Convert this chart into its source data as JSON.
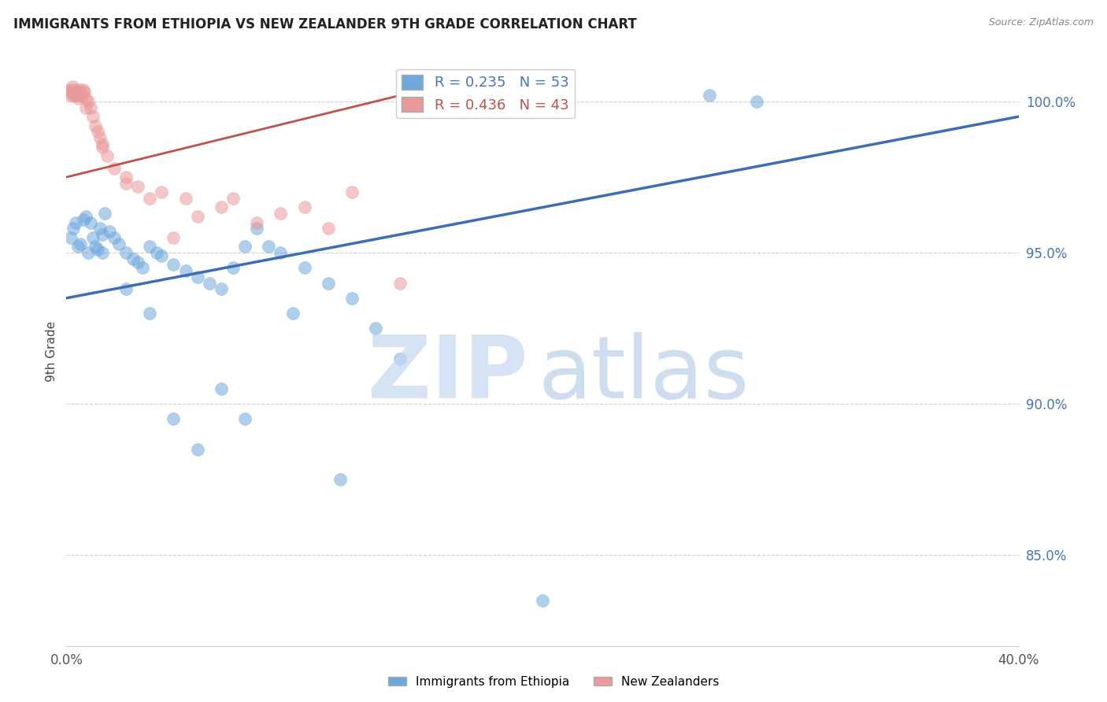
{
  "title": "IMMIGRANTS FROM ETHIOPIA VS NEW ZEALANDER 9TH GRADE CORRELATION CHART",
  "source": "Source: ZipAtlas.com",
  "ylabel": "9th Grade",
  "xlim": [
    0.0,
    40.0
  ],
  "ylim": [
    82.0,
    101.5
  ],
  "yticks": [
    85.0,
    90.0,
    95.0,
    100.0
  ],
  "ytick_labels": [
    "85.0%",
    "90.0%",
    "95.0%",
    "100.0%"
  ],
  "xticks": [
    0.0,
    5.0,
    10.0,
    15.0,
    20.0,
    25.0,
    30.0,
    35.0,
    40.0
  ],
  "xtick_labels": [
    "0.0%",
    "",
    "",
    "",
    "",
    "",
    "",
    "",
    "40.0%"
  ],
  "blue_color": "#6fa8dc",
  "pink_color": "#ea9999",
  "blue_line_color": "#3d6eb4",
  "pink_line_color": "#c0504d",
  "blue_scatter_x": [
    0.2,
    0.3,
    0.4,
    0.5,
    0.6,
    0.7,
    0.8,
    0.9,
    1.0,
    1.1,
    1.2,
    1.3,
    1.4,
    1.5,
    1.6,
    1.8,
    2.0,
    2.2,
    2.5,
    2.8,
    3.0,
    3.2,
    3.5,
    3.8,
    4.0,
    4.5,
    5.0,
    5.5,
    6.0,
    6.5,
    7.0,
    7.5,
    8.0,
    8.5,
    9.0,
    10.0,
    11.0,
    12.0,
    13.0,
    14.0,
    0.5,
    1.5,
    2.5,
    3.5,
    4.5,
    5.5,
    6.5,
    7.5,
    9.5,
    11.5,
    27.0,
    29.0,
    20.0
  ],
  "blue_scatter_y": [
    95.5,
    95.8,
    96.0,
    100.2,
    95.3,
    96.1,
    96.2,
    95.0,
    96.0,
    95.5,
    95.2,
    95.1,
    95.8,
    95.6,
    96.3,
    95.7,
    95.5,
    95.3,
    95.0,
    94.8,
    94.7,
    94.5,
    95.2,
    95.0,
    94.9,
    94.6,
    94.4,
    94.2,
    94.0,
    93.8,
    94.5,
    95.2,
    95.8,
    95.2,
    95.0,
    94.5,
    94.0,
    93.5,
    92.5,
    91.5,
    95.2,
    95.0,
    93.8,
    93.0,
    89.5,
    88.5,
    90.5,
    89.5,
    93.0,
    87.5,
    100.2,
    100.0,
    83.5
  ],
  "pink_scatter_x": [
    0.1,
    0.15,
    0.2,
    0.25,
    0.3,
    0.35,
    0.4,
    0.45,
    0.5,
    0.55,
    0.6,
    0.65,
    0.7,
    0.75,
    0.8,
    0.9,
    1.0,
    1.1,
    1.2,
    1.3,
    1.4,
    1.5,
    1.7,
    2.0,
    2.5,
    3.0,
    4.0,
    5.0,
    6.5,
    8.0,
    10.0,
    12.0,
    0.3,
    0.8,
    1.5,
    2.5,
    3.5,
    4.5,
    5.5,
    7.0,
    9.0,
    11.0,
    14.0
  ],
  "pink_scatter_y": [
    100.3,
    100.4,
    100.2,
    100.5,
    100.3,
    100.4,
    100.2,
    100.3,
    100.1,
    100.4,
    100.3,
    100.2,
    100.4,
    100.3,
    100.1,
    100.0,
    99.8,
    99.5,
    99.2,
    99.0,
    98.8,
    98.5,
    98.2,
    97.8,
    97.5,
    97.2,
    97.0,
    96.8,
    96.5,
    96.0,
    96.5,
    97.0,
    100.2,
    99.8,
    98.6,
    97.3,
    96.8,
    95.5,
    96.2,
    96.8,
    96.3,
    95.8,
    94.0
  ],
  "blue_trendline_x": [
    0.0,
    40.0
  ],
  "blue_trendline_y": [
    93.5,
    99.5
  ],
  "pink_trendline_x": [
    0.0,
    14.0
  ],
  "pink_trendline_y": [
    97.5,
    100.2
  ],
  "legend_blue_r": "0.235",
  "legend_blue_n": "53",
  "legend_pink_r": "0.436",
  "legend_pink_n": "43"
}
